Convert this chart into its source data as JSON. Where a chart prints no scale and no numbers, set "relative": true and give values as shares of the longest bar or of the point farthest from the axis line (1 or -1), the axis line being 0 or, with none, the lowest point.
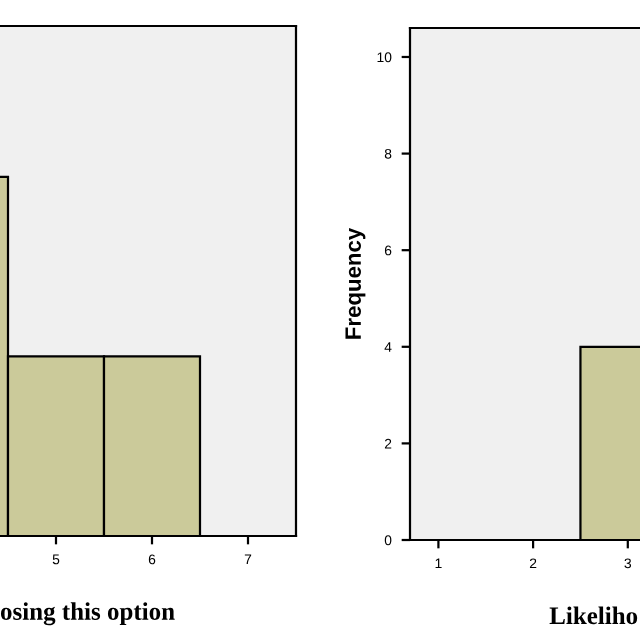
{
  "chart_data": [
    {
      "type": "bar",
      "xlabel": "osing this option",
      "relative": true,
      "categories": [
        null,
        "5",
        "6",
        "7"
      ],
      "values": [
        1,
        0.5,
        0.5,
        null
      ],
      "color": "#cbca9a",
      "grid": false
    },
    {
      "type": "histogram",
      "xlabel": "Likeliho",
      "ylabel": "Frequency",
      "bins": [
        2.5,
        3.5
      ],
      "values": [
        4
      ],
      "color": "#cbca9a",
      "xlim": [
        0.7,
        3.15
      ],
      "ylim": [
        0,
        10.6
      ],
      "xticks": [
        1,
        2,
        3
      ],
      "yticks": [
        0,
        2,
        4,
        6,
        8,
        10
      ],
      "grid": false
    }
  ]
}
